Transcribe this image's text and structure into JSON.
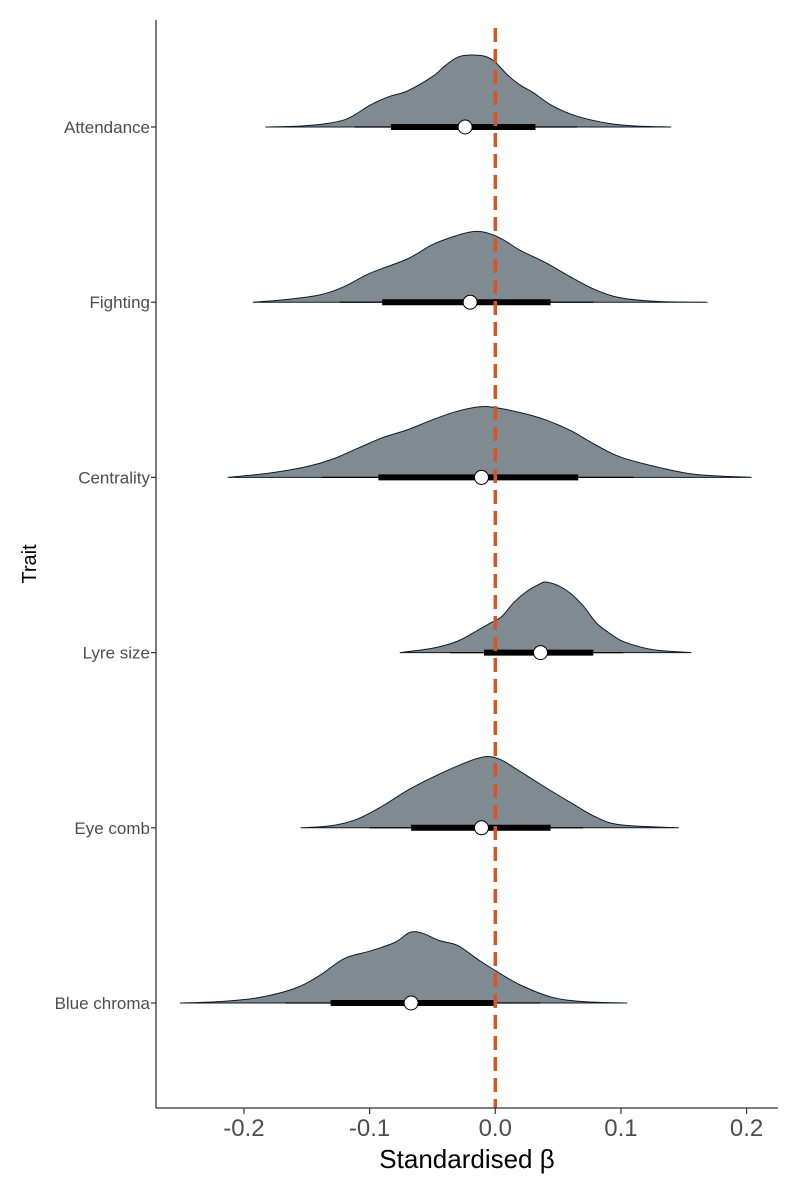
{
  "chart_data": {
    "type": "halfeye",
    "title": "",
    "xlabel": "Standardised β",
    "ylabel": "Trait",
    "xlim": [
      -0.27,
      0.225
    ],
    "x_ticks": [
      -0.2,
      -0.1,
      0.0,
      0.1,
      0.2
    ],
    "x_tick_labels": [
      "-0.2",
      "-0.1",
      "0.0",
      "0.1",
      "0.2"
    ],
    "reference_line": {
      "x": 0.0,
      "style": "dashed",
      "color": "#cc5a2c"
    },
    "grid": false,
    "colors": {
      "density_fill": "#7f8a92",
      "density_stroke": "#0d1b2a",
      "interval": "#000000",
      "point_fill": "#ffffff"
    },
    "categories": [
      "Attendance",
      "Fighting",
      "Centrality",
      "Lyre size",
      "Eye comb",
      "Blue chroma"
    ],
    "series": [
      {
        "trait": "Attendance",
        "point": -0.024,
        "ci66": [
          -0.083,
          0.032
        ],
        "ci95": [
          -0.112,
          0.065
        ],
        "range": [
          -0.183,
          0.14
        ],
        "density": [
          [
            -0.183,
            0
          ],
          [
            -0.15,
            0.02
          ],
          [
            -0.12,
            0.1
          ],
          [
            -0.1,
            0.3
          ],
          [
            -0.085,
            0.42
          ],
          [
            -0.07,
            0.5
          ],
          [
            -0.05,
            0.7
          ],
          [
            -0.04,
            0.85
          ],
          [
            -0.03,
            0.97
          ],
          [
            -0.02,
            1.0
          ],
          [
            -0.008,
            0.98
          ],
          [
            0.0,
            0.9
          ],
          [
            0.01,
            0.72
          ],
          [
            0.02,
            0.58
          ],
          [
            0.03,
            0.48
          ],
          [
            0.045,
            0.3
          ],
          [
            0.065,
            0.15
          ],
          [
            0.09,
            0.05
          ],
          [
            0.11,
            0.015
          ],
          [
            0.14,
            0
          ]
        ]
      },
      {
        "trait": "Fighting",
        "point": -0.02,
        "ci66": [
          -0.09,
          0.044
        ],
        "ci95": [
          -0.124,
          0.078
        ],
        "range": [
          -0.193,
          0.169
        ],
        "density": [
          [
            -0.193,
            0
          ],
          [
            -0.17,
            0.03
          ],
          [
            -0.14,
            0.1
          ],
          [
            -0.12,
            0.22
          ],
          [
            -0.1,
            0.4
          ],
          [
            -0.07,
            0.6
          ],
          [
            -0.05,
            0.8
          ],
          [
            -0.03,
            0.93
          ],
          [
            -0.018,
            0.98
          ],
          [
            -0.008,
            0.97
          ],
          [
            0.005,
            0.88
          ],
          [
            0.02,
            0.72
          ],
          [
            0.04,
            0.55
          ],
          [
            0.06,
            0.35
          ],
          [
            0.08,
            0.17
          ],
          [
            0.1,
            0.06
          ],
          [
            0.13,
            0.01
          ],
          [
            0.169,
            0
          ]
        ]
      },
      {
        "trait": "Centrality",
        "point": -0.011,
        "ci66": [
          -0.093,
          0.066
        ],
        "ci95": [
          -0.138,
          0.11
        ],
        "range": [
          -0.213,
          0.204
        ],
        "density": [
          [
            -0.213,
            0
          ],
          [
            -0.18,
            0.06
          ],
          [
            -0.15,
            0.15
          ],
          [
            -0.13,
            0.25
          ],
          [
            -0.11,
            0.4
          ],
          [
            -0.09,
            0.55
          ],
          [
            -0.07,
            0.66
          ],
          [
            -0.05,
            0.8
          ],
          [
            -0.03,
            0.92
          ],
          [
            -0.012,
            0.98
          ],
          [
            0.0,
            0.97
          ],
          [
            0.02,
            0.9
          ],
          [
            0.04,
            0.8
          ],
          [
            0.06,
            0.65
          ],
          [
            0.08,
            0.45
          ],
          [
            0.1,
            0.28
          ],
          [
            0.13,
            0.14
          ],
          [
            0.16,
            0.04
          ],
          [
            0.204,
            0
          ]
        ]
      },
      {
        "trait": "Lyre size",
        "point": 0.036,
        "ci66": [
          -0.009,
          0.078
        ],
        "ci95": [
          -0.036,
          0.102
        ],
        "range": [
          -0.076,
          0.156
        ],
        "density": [
          [
            -0.076,
            0
          ],
          [
            -0.05,
            0.06
          ],
          [
            -0.03,
            0.16
          ],
          [
            -0.015,
            0.3
          ],
          [
            -0.005,
            0.4
          ],
          [
            0.005,
            0.5
          ],
          [
            0.015,
            0.7
          ],
          [
            0.025,
            0.85
          ],
          [
            0.035,
            0.95
          ],
          [
            0.04,
            0.98
          ],
          [
            0.05,
            0.93
          ],
          [
            0.06,
            0.82
          ],
          [
            0.07,
            0.65
          ],
          [
            0.08,
            0.42
          ],
          [
            0.09,
            0.28
          ],
          [
            0.1,
            0.17
          ],
          [
            0.115,
            0.08
          ],
          [
            0.13,
            0.03
          ],
          [
            0.156,
            0
          ]
        ]
      },
      {
        "trait": "Eye comb",
        "point": -0.011,
        "ci66": [
          -0.067,
          0.044
        ],
        "ci95": [
          -0.1,
          0.07
        ],
        "range": [
          -0.155,
          0.146
        ],
        "density": [
          [
            -0.155,
            0
          ],
          [
            -0.13,
            0.03
          ],
          [
            -0.11,
            0.12
          ],
          [
            -0.09,
            0.3
          ],
          [
            -0.07,
            0.52
          ],
          [
            -0.05,
            0.7
          ],
          [
            -0.03,
            0.86
          ],
          [
            -0.015,
            0.96
          ],
          [
            -0.005,
            0.99
          ],
          [
            0.005,
            0.94
          ],
          [
            0.02,
            0.78
          ],
          [
            0.04,
            0.56
          ],
          [
            0.06,
            0.35
          ],
          [
            0.08,
            0.15
          ],
          [
            0.1,
            0.04
          ],
          [
            0.146,
            0
          ]
        ]
      },
      {
        "trait": "Blue chroma",
        "point": -0.067,
        "ci66": [
          -0.131,
          0.0
        ],
        "ci95": [
          -0.167,
          0.036
        ],
        "range": [
          -0.251,
          0.105
        ],
        "density": [
          [
            -0.251,
            0
          ],
          [
            -0.22,
            0.02
          ],
          [
            -0.19,
            0.07
          ],
          [
            -0.16,
            0.2
          ],
          [
            -0.14,
            0.38
          ],
          [
            -0.12,
            0.62
          ],
          [
            -0.1,
            0.72
          ],
          [
            -0.08,
            0.84
          ],
          [
            -0.068,
            0.98
          ],
          [
            -0.058,
            0.97
          ],
          [
            -0.045,
            0.87
          ],
          [
            -0.03,
            0.8
          ],
          [
            -0.015,
            0.62
          ],
          [
            0.0,
            0.45
          ],
          [
            0.02,
            0.25
          ],
          [
            0.045,
            0.08
          ],
          [
            0.07,
            0.02
          ],
          [
            0.105,
            0
          ]
        ]
      }
    ]
  }
}
